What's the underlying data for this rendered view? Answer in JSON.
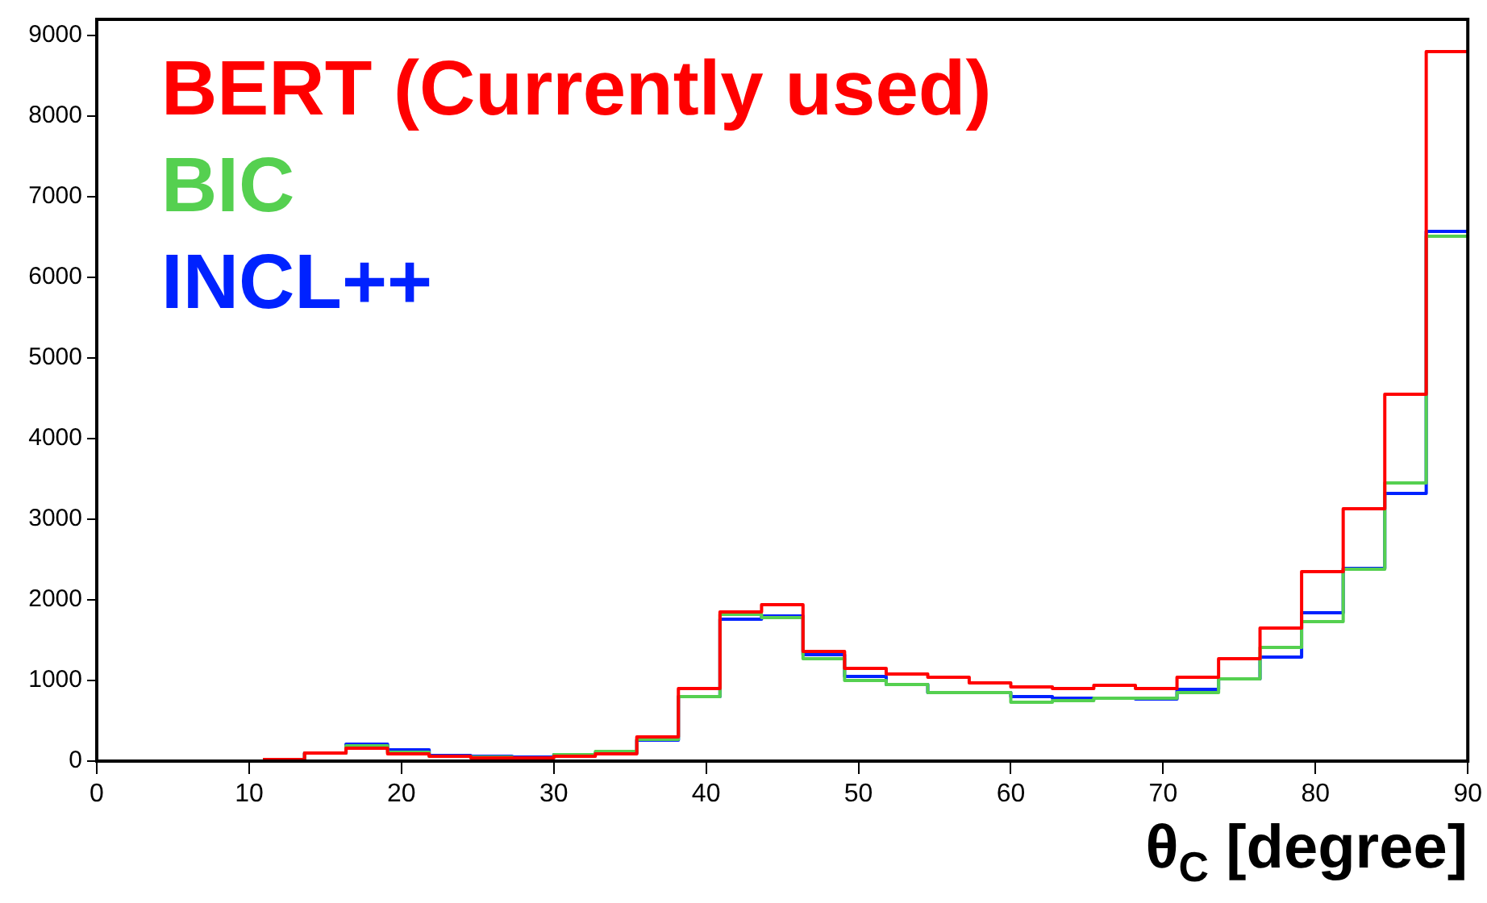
{
  "chart_data": {
    "type": "histogram",
    "xlabel": "θ$_{C}$ [degree]",
    "bins": [
      10.91,
      13.64,
      16.36,
      19.09,
      21.82,
      24.55,
      27.27,
      30,
      32.73,
      35.45,
      38.18,
      40.91,
      43.64,
      46.36,
      49.09,
      51.82,
      54.55,
      57.27,
      60,
      62.73,
      65.45,
      68.18,
      70.91,
      73.64,
      76.36,
      79.09,
      81.82,
      84.55,
      87.27,
      90
    ],
    "series": [
      {
        "name": "BERT (Currently used)",
        "color": "#ff0000",
        "values": [
          20,
          100,
          160,
          90,
          60,
          40,
          40,
          60,
          90,
          300,
          900,
          1850,
          1940,
          1360,
          1150,
          1080,
          1040,
          970,
          920,
          900,
          940,
          900,
          1040,
          1270,
          1650,
          2350,
          3130,
          4550,
          8800
        ]
      },
      {
        "name": "BIC",
        "color": "#55d050",
        "values": [
          20,
          100,
          190,
          110,
          60,
          50,
          40,
          80,
          120,
          270,
          800,
          1820,
          1780,
          1270,
          1000,
          950,
          850,
          850,
          730,
          750,
          780,
          780,
          850,
          1020,
          1410,
          1730,
          2380,
          3450,
          6510
        ]
      },
      {
        "name": "INCL++",
        "color": "#0022ff",
        "values": [
          20,
          100,
          210,
          140,
          70,
          60,
          50,
          80,
          100,
          260,
          800,
          1760,
          1800,
          1320,
          1050,
          950,
          850,
          850,
          800,
          780,
          780,
          770,
          890,
          1020,
          1290,
          1840,
          2390,
          3320,
          6570
        ]
      }
    ],
    "xlim": [
      0,
      90
    ],
    "ylim": [
      0,
      9200
    ],
    "xticks": [
      0,
      10,
      20,
      30,
      40,
      50,
      60,
      70,
      80,
      90
    ],
    "yticks": [
      0,
      1000,
      2000,
      3000,
      4000,
      5000,
      6000,
      7000,
      8000,
      9000
    ],
    "grid": false,
    "legend": "top left"
  }
}
